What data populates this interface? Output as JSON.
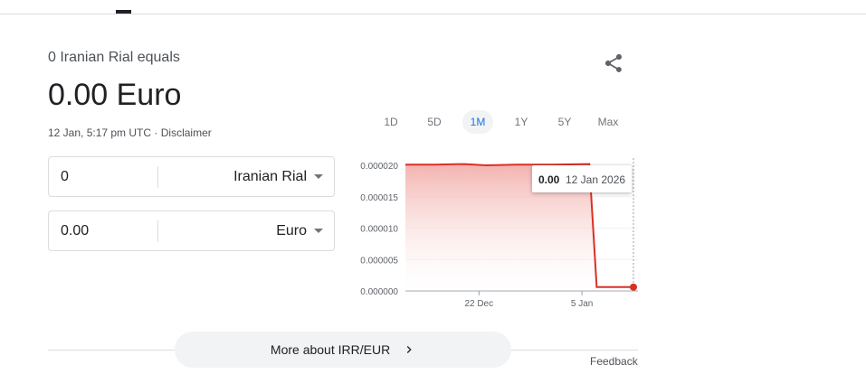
{
  "header": {
    "sub": "0 Iranian Rial equals",
    "result": "0.00 Euro",
    "timestamp": "12 Jan, 5:17 pm UTC",
    "separator": " · ",
    "disclaimer": "Disclaimer"
  },
  "converter": {
    "from_value": "0",
    "from_currency": "Iranian Rial",
    "to_value": "0.00",
    "to_currency": "Euro"
  },
  "ranges": [
    "1D",
    "5D",
    "1M",
    "1Y",
    "5Y",
    "Max"
  ],
  "active_range": "1M",
  "more_label": "More about IRR/EUR",
  "feedback": "Feedback",
  "icons": {
    "share": "share-icon",
    "chevron": "chevron-right-icon"
  },
  "colors": {
    "line": "#d93025",
    "accent": "#1a73e8"
  },
  "chart_data": {
    "type": "area",
    "xlim": [
      "2025-12-12",
      "2026-01-12"
    ],
    "ylim": [
      0,
      2e-05
    ],
    "yticks": [
      "0.000000",
      "0.000005",
      "0.000010",
      "0.000015",
      "0.000020"
    ],
    "xticks": [
      {
        "date": "2025-12-22",
        "label": "22 Dec"
      },
      {
        "date": "2026-01-05",
        "label": "5 Jan"
      }
    ],
    "points": [
      [
        "2025-12-12",
        2.01e-05
      ],
      [
        "2025-12-16",
        2.01e-05
      ],
      [
        "2025-12-20",
        2.02e-05
      ],
      [
        "2025-12-23",
        2e-05
      ],
      [
        "2025-12-27",
        2.01e-05
      ],
      [
        "2026-01-01",
        2.01e-05
      ],
      [
        "2026-01-06",
        2.02e-05
      ],
      [
        "2026-01-07",
        6e-07
      ],
      [
        "2026-01-12",
        6e-07
      ]
    ],
    "tooltip": {
      "value": "0.00",
      "date": "12 Jan 2026"
    }
  }
}
